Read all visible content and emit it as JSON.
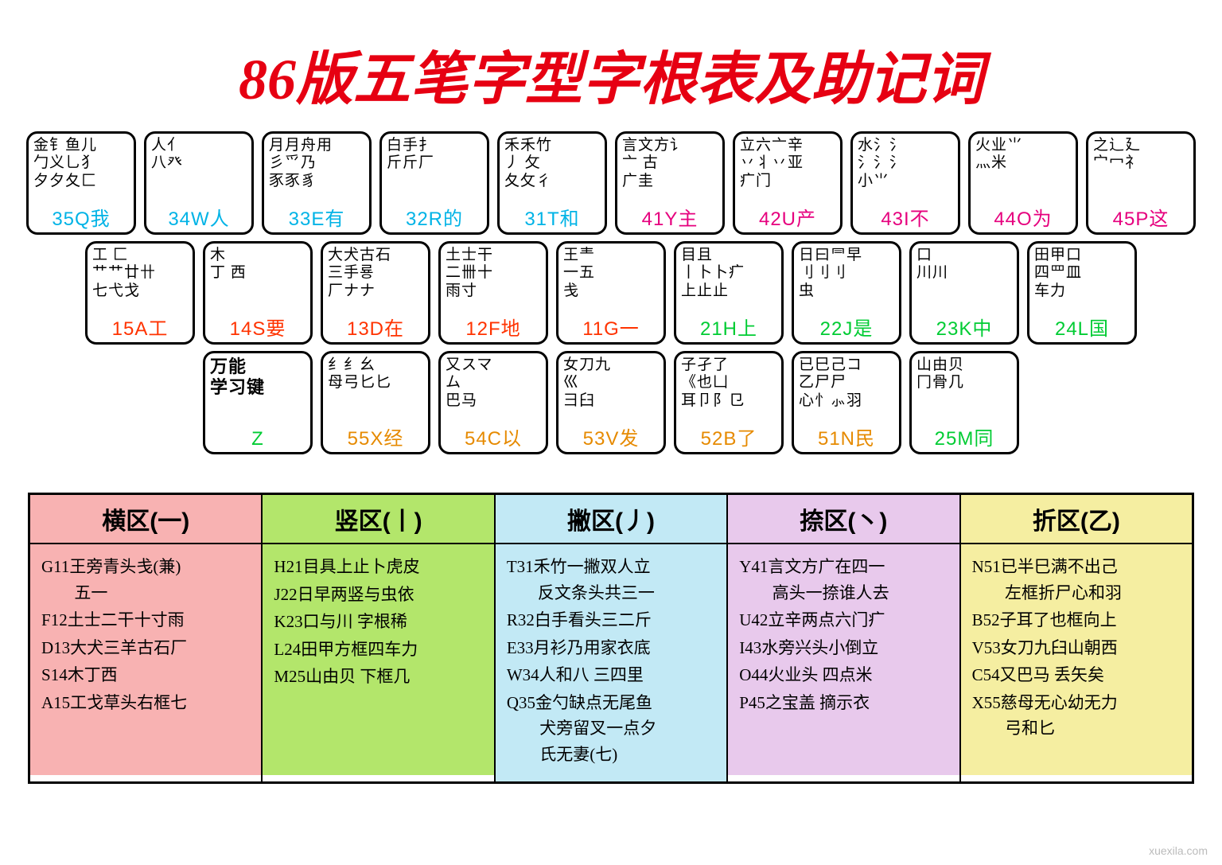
{
  "title": "86版五笔字型字根表及助记词",
  "title_color": "#e60012",
  "watermark": "xuexila.com",
  "colors": {
    "zone1": "#ff3300",
    "zone2": "#00cc33",
    "zone3": "#00b3e6",
    "zone4": "#e6007e",
    "zone5": "#e68a00"
  },
  "keyboard": {
    "row1": [
      {
        "radicals": "金钅鱼儿\n勹义乚犭\n夕夕夂匚",
        "label": "35Q我",
        "color": "#00b3e6"
      },
      {
        "radicals": "人亻\n八癶",
        "label": "34W人",
        "color": "#00b3e6"
      },
      {
        "radicals": "月月舟用\n彡爫乃\n豕豕豸",
        "label": "33E有",
        "color": "#00b3e6"
      },
      {
        "radicals": "白手扌\n斤斤厂",
        "label": "32R的",
        "color": "#00b3e6"
      },
      {
        "radicals": "禾禾竹\n丿 攵\n夂攵彳",
        "label": "31T和",
        "color": "#00b3e6"
      },
      {
        "radicals": "言文方讠\n亠 古\n广圭",
        "label": "41Y主",
        "color": "#e6007e"
      },
      {
        "radicals": "立六亠辛\n丷丬丷亚\n疒门",
        "label": "42U产",
        "color": "#e6007e"
      },
      {
        "radicals": "水氵氵\n氵氵氵\n小⺌",
        "label": "43I不",
        "color": "#e6007e"
      },
      {
        "radicals": "火业⺌\n灬米",
        "label": "44O为",
        "color": "#e6007e"
      },
      {
        "radicals": "之辶廴\n宀冖礻",
        "label": "45P这",
        "color": "#e6007e"
      }
    ],
    "row2": [
      {
        "radicals": "工  匚\n艹艹廿卄\n七弋戈",
        "label": "15A工",
        "color": "#ff3300"
      },
      {
        "radicals": "木\n丁 西",
        "label": "14S要",
        "color": "#ff3300"
      },
      {
        "radicals": "大犬古石\n三手룡\n厂ナナ",
        "label": "13D在",
        "color": "#ff3300"
      },
      {
        "radicals": "土士干\n二卌十\n雨寸",
        "label": "12F地",
        "color": "#ff3300"
      },
      {
        "radicals": "王龶\n一五\n戋",
        "label": "11G一",
        "color": "#ff3300"
      },
      {
        "radicals": "目且\n丨卜卜疒\n上止止",
        "label": "21H上",
        "color": "#00cc33"
      },
      {
        "radicals": "日曰⺜早\n刂刂刂\n虫",
        "label": "22J是",
        "color": "#00cc33"
      },
      {
        "radicals": "口\n川川",
        "label": "23K中",
        "color": "#00cc33"
      },
      {
        "radicals": "田甲口\n四罒皿\n车力",
        "label": "24L国",
        "color": "#00cc33"
      }
    ],
    "row3": [
      {
        "radicals": "万能\n学习键",
        "label": "Z",
        "color": "#00cc33",
        "zkey": true
      },
      {
        "radicals": "纟纟幺\n母弓匕匕",
        "label": "55X经",
        "color": "#e68a00"
      },
      {
        "radicals": "又スマ\nム\n巴马",
        "label": "54C以",
        "color": "#e68a00"
      },
      {
        "radicals": "女刀九\n巛\n彐臼",
        "label": "53V发",
        "color": "#e68a00"
      },
      {
        "radicals": "子孑了\n《也凵\n耳卩阝㔾",
        "label": "52B了",
        "color": "#e68a00"
      },
      {
        "radicals": "已巳己コ\n乙尸尸\n心忄⺗羽",
        "label": "51N民",
        "color": "#e68a00"
      },
      {
        "radicals": "山由贝\n冂骨几",
        "label": "25M同",
        "color": "#00cc33"
      }
    ]
  },
  "zones": [
    {
      "header": "横区(一)",
      "bg": "#f8b2b2",
      "items": [
        {
          "pre": "G ",
          "txt": "11王旁青头戋(兼)\n　 五一"
        },
        {
          "pre": "F ",
          "txt": "12土士二干十寸雨"
        },
        {
          "pre": "D ",
          "txt": "13大犬三羊古石厂"
        },
        {
          "pre": "S ",
          "txt": "14木丁西"
        },
        {
          "pre": "A ",
          "txt": "15工戈草头右框七"
        }
      ]
    },
    {
      "header": "竖区(丨)",
      "bg": "#b3e66b",
      "items": [
        {
          "pre": "H ",
          "txt": "21目具上止卜虎皮"
        },
        {
          "pre": "J ",
          "txt": "22日早两竖与虫依"
        },
        {
          "pre": "K ",
          "txt": "23口与川  字根稀"
        },
        {
          "pre": "L ",
          "txt": "24田甲方框四车力"
        },
        {
          "pre": "M ",
          "txt": "25山由贝  下框几"
        }
      ]
    },
    {
      "header": "撇区(丿)",
      "bg": "#c2e9f5",
      "items": [
        {
          "pre": "T ",
          "txt": "31禾竹一撇双人立\n　 反文条头共三一"
        },
        {
          "pre": "R ",
          "txt": "32白手看头三二斤"
        },
        {
          "pre": "E ",
          "txt": "33月衫乃用家衣底"
        },
        {
          "pre": "W ",
          "txt": "34人和八  三四里"
        },
        {
          "pre": "Q ",
          "txt": "35金勺缺点无尾鱼\n　 犬旁留叉一点夕\n　 氏无妻(七)"
        }
      ]
    },
    {
      "header": "捺区(丶)",
      "bg": "#e8c9ec",
      "items": [
        {
          "pre": "Y ",
          "txt": "41言文方广在四一\n　 高头一捺谁人去"
        },
        {
          "pre": "U ",
          "txt": "42立辛两点六门疒"
        },
        {
          "pre": "I ",
          "txt": "43水旁兴头小倒立"
        },
        {
          "pre": "O ",
          "txt": "44火业头  四点米"
        },
        {
          "pre": "P ",
          "txt": "45之宝盖  摘示衣"
        }
      ]
    },
    {
      "header": "折区(乙)",
      "bg": "#f5eea1",
      "items": [
        {
          "pre": "N ",
          "txt": "51已半巳满不出己\n　 左框折尸心和羽"
        },
        {
          "pre": "B ",
          "txt": "52子耳了也框向上"
        },
        {
          "pre": "V ",
          "txt": "53女刀九臼山朝西"
        },
        {
          "pre": "C ",
          "txt": "54又巴马  丢矢矣"
        },
        {
          "pre": "X ",
          "txt": "55慈母无心幼无力\n　 弓和匕"
        }
      ]
    }
  ]
}
